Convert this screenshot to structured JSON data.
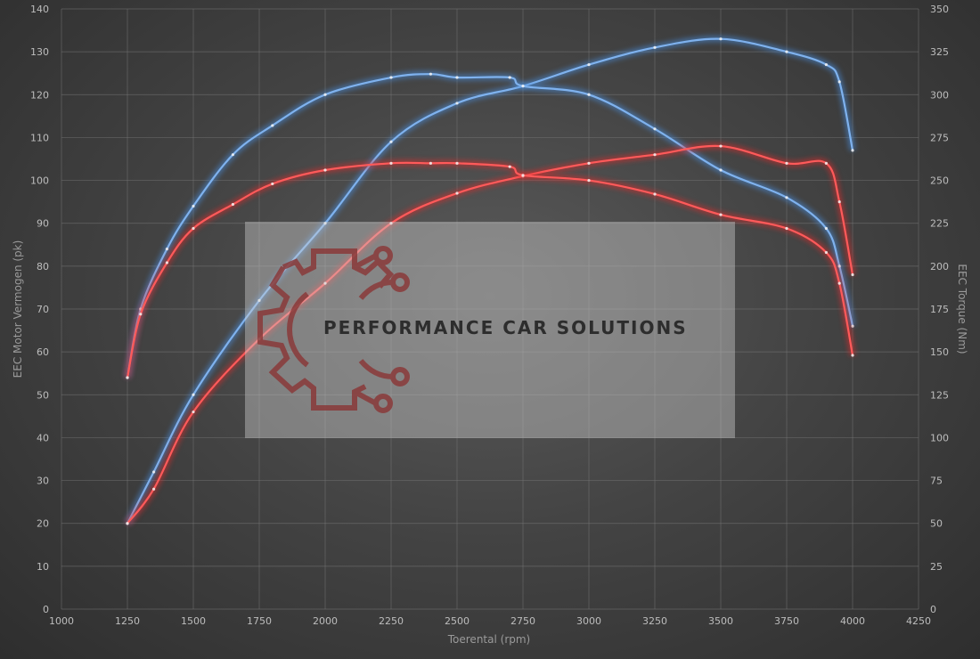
{
  "chart_data": {
    "type": "line",
    "xlabel": "Toerental (rpm)",
    "ylabel_left": "EEC Motor Vermogen (pk)",
    "ylabel_right": "EEC Torque (Nm)",
    "xlim": [
      1000,
      4250
    ],
    "ylim_left": [
      0,
      140
    ],
    "ylim_right": [
      0,
      350
    ],
    "x_ticks": [
      1000,
      1250,
      1500,
      1750,
      2000,
      2250,
      2500,
      2750,
      3000,
      3250,
      3500,
      3750,
      4000,
      4250
    ],
    "y_ticks_left": [
      0,
      10,
      20,
      30,
      40,
      50,
      60,
      70,
      80,
      90,
      100,
      110,
      120,
      130,
      140
    ],
    "y_ticks_right": [
      0,
      25,
      50,
      75,
      100,
      125,
      150,
      175,
      200,
      225,
      250,
      275,
      300,
      325,
      350
    ],
    "grid": true,
    "series": [
      {
        "axis": "left",
        "color": "#4a8fe0",
        "x": [
          1250,
          1350,
          1500,
          1750,
          2000,
          2250,
          2500,
          2750,
          3000,
          3250,
          3500,
          3750,
          3900,
          3950,
          4000
        ],
        "y": [
          20,
          32,
          50,
          72,
          90,
          109,
          118,
          122,
          127,
          131,
          133,
          130,
          127,
          123,
          107
        ]
      },
      {
        "axis": "right",
        "color": "#4a8fe0",
        "x": [
          1250,
          1300,
          1400,
          1500,
          1650,
          1800,
          2000,
          2250,
          2400,
          2500,
          2700,
          2750,
          3000,
          3250,
          3500,
          3750,
          3900,
          3950,
          4000
        ],
        "y": [
          135,
          175,
          210,
          235,
          265,
          282,
          300,
          310,
          312,
          310,
          310,
          305,
          300,
          280,
          256,
          240,
          222,
          200,
          165
        ]
      },
      {
        "axis": "left",
        "color": "#e02a2a",
        "x": [
          1250,
          1350,
          1500,
          1750,
          2000,
          2250,
          2500,
          2750,
          3000,
          3250,
          3500,
          3750,
          3900,
          3950,
          4000
        ],
        "y": [
          20,
          28,
          46,
          63,
          76,
          90,
          97,
          101,
          104,
          106,
          108,
          104,
          104,
          95,
          78
        ]
      },
      {
        "axis": "right",
        "color": "#e02a2a",
        "x": [
          1250,
          1300,
          1400,
          1500,
          1650,
          1800,
          2000,
          2250,
          2400,
          2500,
          2700,
          2750,
          3000,
          3250,
          3500,
          3750,
          3900,
          3950,
          4000
        ],
        "y": [
          135,
          172,
          202,
          222,
          236,
          248,
          256,
          260,
          260,
          260,
          258,
          253,
          250,
          242,
          230,
          222,
          208,
          190,
          148
        ]
      }
    ]
  },
  "watermark": {
    "text": "PERFORMANCE CAR SOLUTIONS",
    "logo_icon": "gear-circuit-logo-icon"
  }
}
